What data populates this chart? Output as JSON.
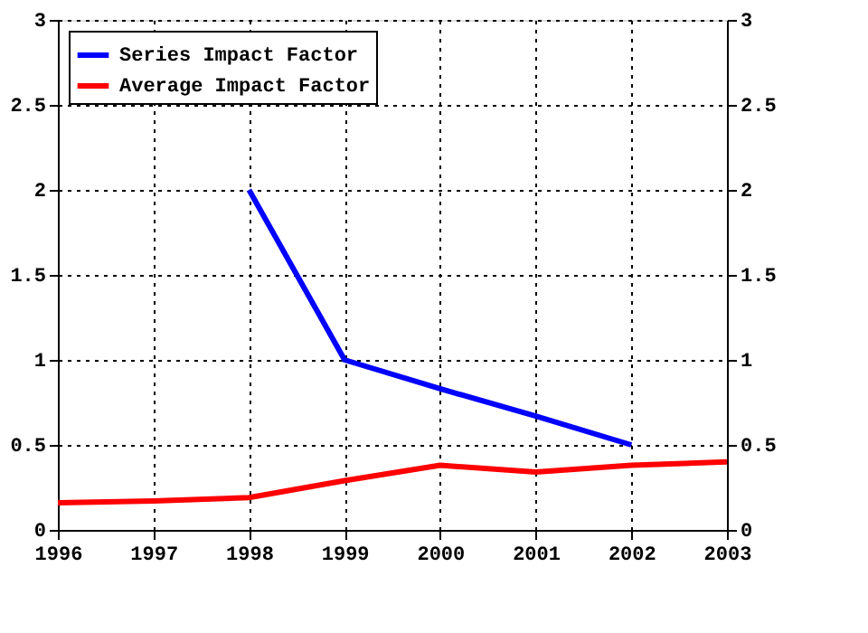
{
  "chart_data": {
    "type": "line",
    "x": [
      1996,
      1997,
      1998,
      1999,
      2000,
      2001,
      2002,
      2003
    ],
    "series": [
      {
        "name": "Series Impact Factor",
        "color": "#0000ff",
        "values": [
          null,
          null,
          2,
          1,
          0.83,
          0.67,
          0.5,
          null
        ]
      },
      {
        "name": "Average Impact Factor",
        "color": "#ff0000",
        "values": [
          0.16,
          0.17,
          0.19,
          0.29,
          0.38,
          0.34,
          0.38,
          0.4
        ]
      }
    ],
    "xlim": [
      1996,
      2003
    ],
    "xticks": [
      1996,
      1997,
      1998,
      1999,
      2000,
      2001,
      2002,
      2003
    ],
    "ylim": [
      0,
      3
    ],
    "yticks": [
      0,
      0.5,
      1,
      1.5,
      2,
      2.5,
      3
    ],
    "y2lim": [
      0,
      3
    ],
    "y2ticks": [
      0,
      0.5,
      1,
      1.5,
      2,
      2.5,
      3
    ],
    "grid": true,
    "legend": "top left",
    "marker": "none",
    "line_style": "solid"
  }
}
